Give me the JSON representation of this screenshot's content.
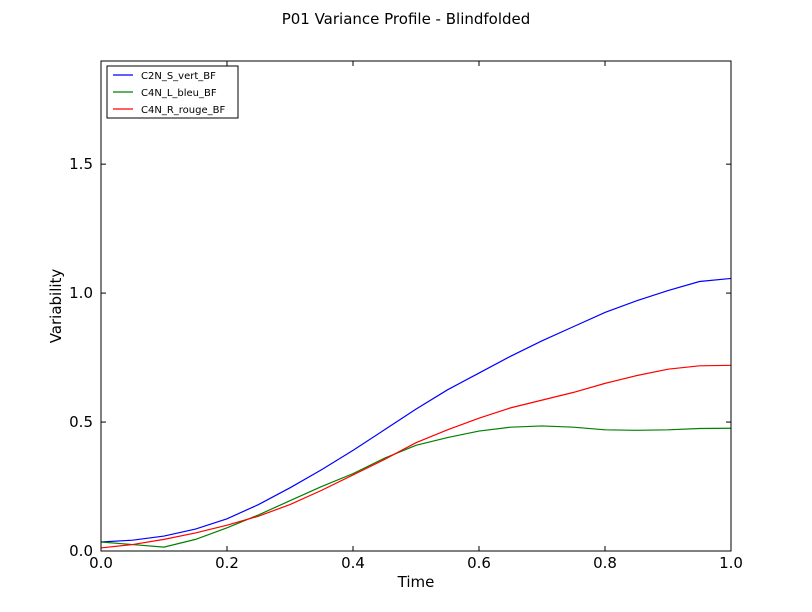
{
  "chart_data": {
    "type": "line",
    "title": "P01 Variance Profile - Blindfolded",
    "xlabel": "Time",
    "ylabel": "Variability",
    "xlim": [
      0.0,
      1.0
    ],
    "ylim": [
      0.0,
      1.9
    ],
    "xticks": [
      "0.0",
      "0.2",
      "0.4",
      "0.6",
      "0.8",
      "1.0"
    ],
    "yticks": [
      "0.0",
      "0.5",
      "1.0",
      "1.5"
    ],
    "grid": false,
    "legend_position": "top-left",
    "x": [
      0.0,
      0.05,
      0.1,
      0.15,
      0.2,
      0.25,
      0.3,
      0.35,
      0.4,
      0.45,
      0.5,
      0.55,
      0.6,
      0.65,
      0.7,
      0.75,
      0.8,
      0.85,
      0.9,
      0.95,
      1.0
    ],
    "series": [
      {
        "name": "C2N_S_vert_BF",
        "color": "#0000ff",
        "values": [
          0.035,
          0.042,
          0.058,
          0.085,
          0.125,
          0.18,
          0.245,
          0.315,
          0.39,
          0.47,
          0.55,
          0.625,
          0.69,
          0.755,
          0.815,
          0.87,
          0.925,
          0.97,
          1.01,
          1.045,
          1.057
        ]
      },
      {
        "name": "C4N_L_bleu_BF",
        "color": "#008000",
        "values": [
          0.035,
          0.025,
          0.015,
          0.045,
          0.09,
          0.14,
          0.195,
          0.25,
          0.3,
          0.36,
          0.41,
          0.44,
          0.465,
          0.48,
          0.485,
          0.48,
          0.47,
          0.468,
          0.47,
          0.475,
          0.476
        ]
      },
      {
        "name": "C4N_R_rouge_BF",
        "color": "#ff0000",
        "values": [
          0.012,
          0.025,
          0.045,
          0.07,
          0.1,
          0.135,
          0.18,
          0.235,
          0.295,
          0.355,
          0.42,
          0.47,
          0.515,
          0.555,
          0.585,
          0.615,
          0.65,
          0.68,
          0.705,
          0.718,
          0.72
        ]
      }
    ]
  }
}
